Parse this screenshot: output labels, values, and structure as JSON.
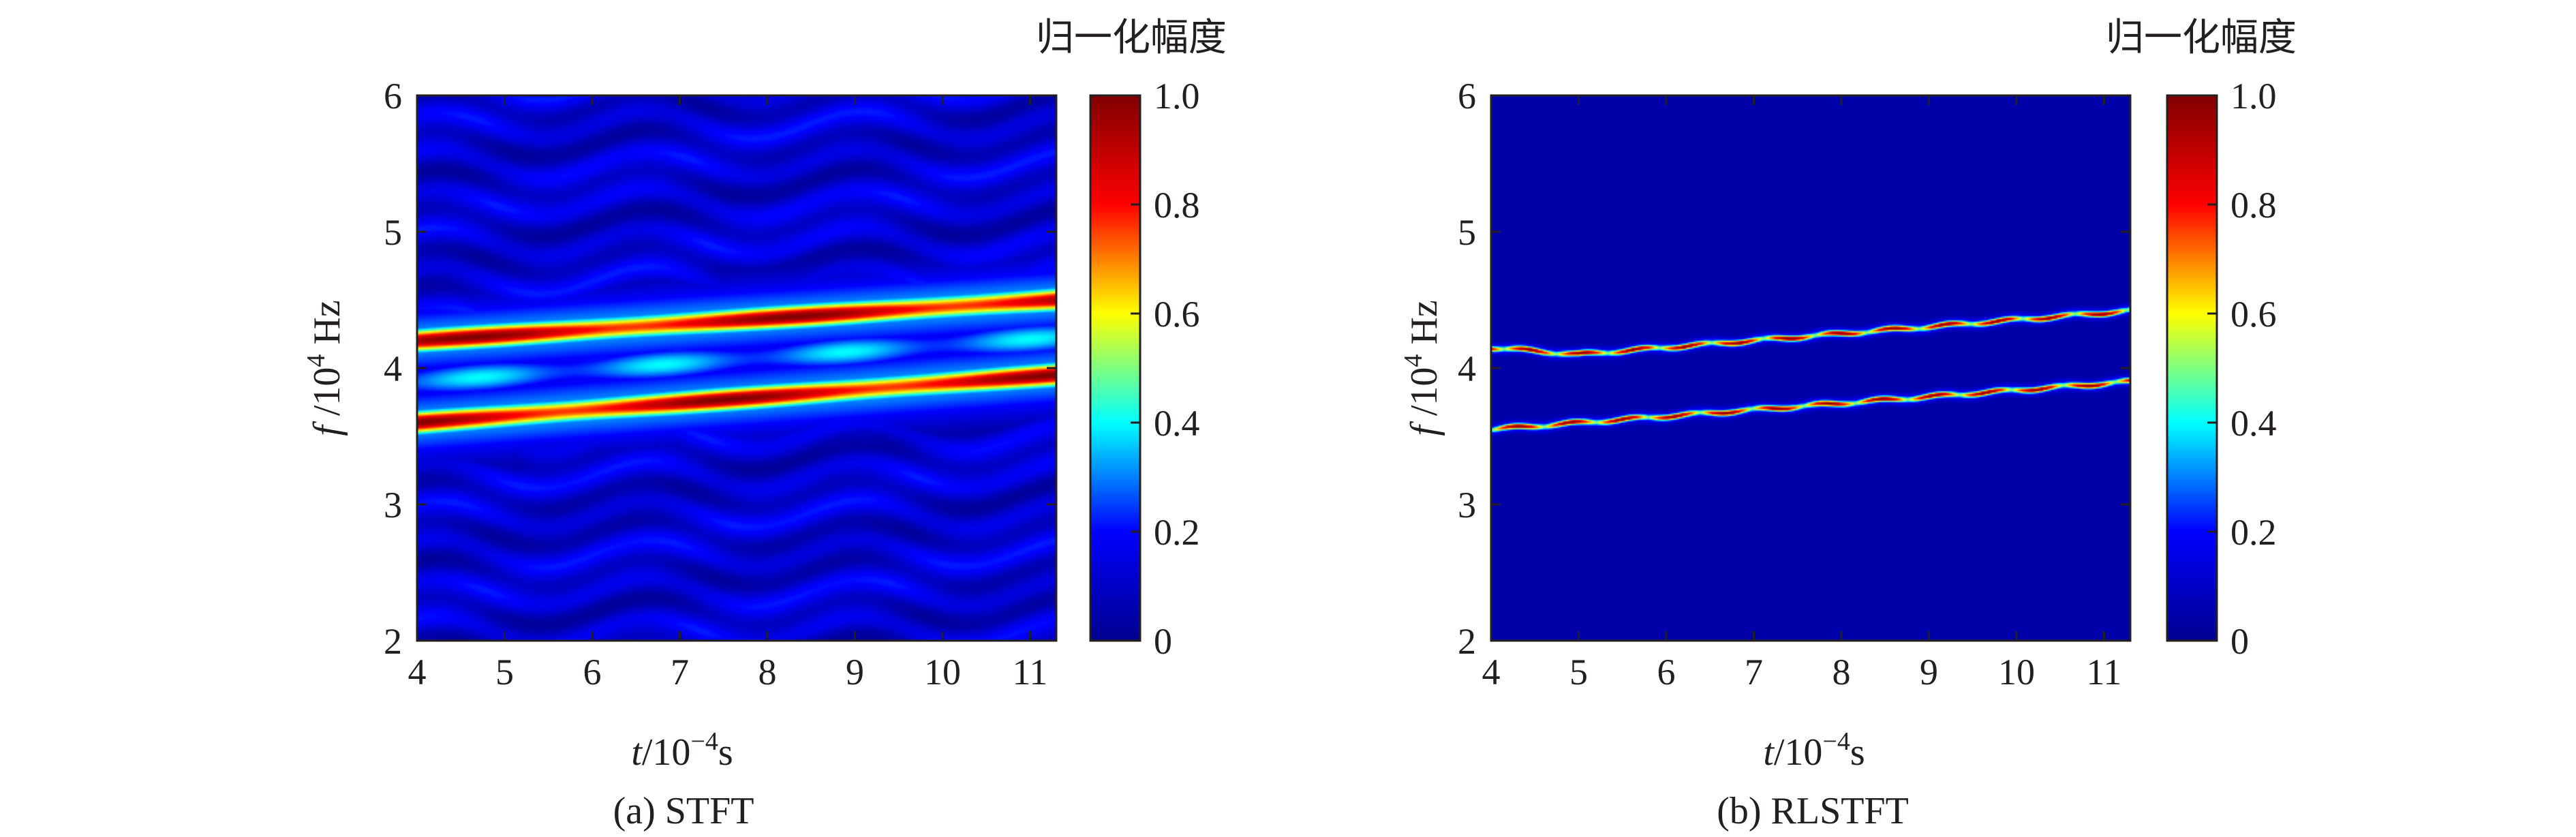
{
  "colors": {
    "jet_stops": [
      "#00008f",
      "#0000ff",
      "#00ffff",
      "#ffff00",
      "#ff0000",
      "#800000"
    ],
    "axis": "#231f20"
  },
  "chart_data": [
    {
      "type": "heatmap",
      "id": "stft",
      "caption": "(a) STFT",
      "xlabel_italic": "t",
      "xlabel_rest": "/10",
      "xlabel_exp": "−4",
      "xlabel_unit": "s",
      "ylabel_italic": "f",
      "ylabel_rest": "/10",
      "ylabel_exp": "4",
      "ylabel_unit": "Hz",
      "xlim": [
        4,
        11.3
      ],
      "ylim": [
        2,
        6
      ],
      "xticks": [
        "4",
        "5",
        "6",
        "7",
        "8",
        "9",
        "10",
        "11"
      ],
      "yticks": [
        "2",
        "3",
        "4",
        "5",
        "6"
      ],
      "colorbar": {
        "title": "归一化幅度",
        "ticks": [
          "0",
          "0.2",
          "0.4",
          "0.6",
          "0.8",
          "1.0"
        ],
        "range": [
          0,
          1
        ]
      },
      "ridges": [
        {
          "name": "upper component",
          "t": [
            4,
            11.3
          ],
          "f": [
            4.2,
            4.5
          ],
          "peak": 1.0
        },
        {
          "name": "lower component",
          "t": [
            4,
            11.3
          ],
          "f": [
            3.6,
            3.95
          ],
          "peak": 1.0
        }
      ],
      "background_level": 0.12
    },
    {
      "type": "heatmap",
      "id": "rlstft",
      "caption": "(b) RLSTFT",
      "xlabel_italic": "t",
      "xlabel_rest": "/10",
      "xlabel_exp": "−4",
      "xlabel_unit": "s",
      "ylabel_italic": "f",
      "ylabel_rest": "/10",
      "ylabel_exp": "4",
      "ylabel_unit": "Hz",
      "xlim": [
        4,
        11.3
      ],
      "ylim": [
        2,
        6
      ],
      "xticks": [
        "4",
        "5",
        "6",
        "7",
        "8",
        "9",
        "10",
        "11"
      ],
      "yticks": [
        "2",
        "3",
        "4",
        "5",
        "6"
      ],
      "colorbar": {
        "title": "归一化幅度",
        "ticks": [
          "0",
          "0.2",
          "0.4",
          "0.6",
          "0.8",
          "1.0"
        ],
        "range": [
          0,
          1
        ]
      },
      "ridges": [
        {
          "name": "upper component",
          "t": [
            4,
            5,
            11.3
          ],
          "f": [
            4.15,
            4.1,
            4.42
          ],
          "peak": 1.0
        },
        {
          "name": "lower component",
          "t": [
            4,
            11.3
          ],
          "f": [
            3.55,
            3.9
          ],
          "peak": 1.0
        }
      ],
      "background_level": 0.0
    }
  ]
}
